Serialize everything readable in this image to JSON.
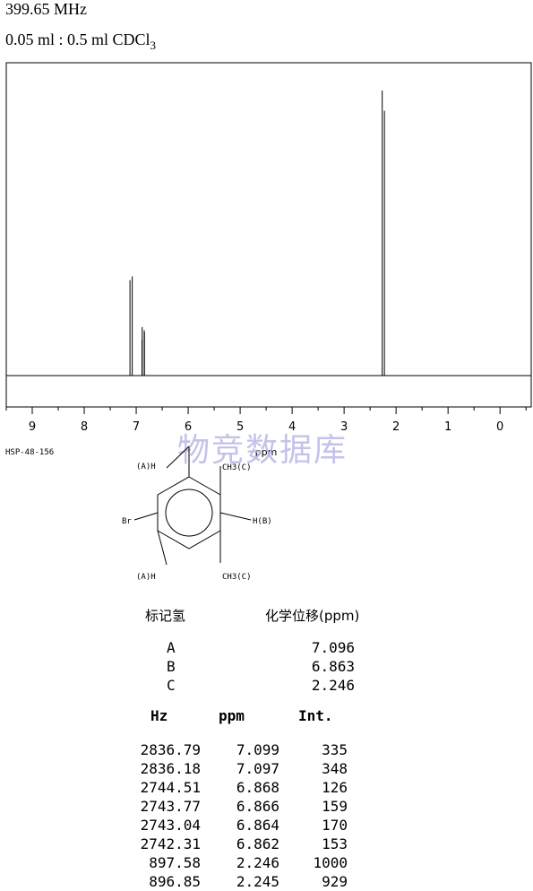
{
  "header": {
    "frequency": "399.65 MHz",
    "solvent_main": "0.05 ml : 0.5 ml CDCl",
    "solvent_sub": "3"
  },
  "watermark": "物竞数据库",
  "sample_id": "HSP-48-156",
  "structure": {
    "labels": {
      "ha_top": "(A)H",
      "ch3_top": "CH3(C)",
      "br": "Br",
      "hb": "H(B)",
      "ha_bottom": "(A)H",
      "ch3_bottom": "CH3(C)"
    }
  },
  "chart_data": {
    "type": "line",
    "title": "",
    "xlabel": "ppm",
    "ylabel": "",
    "xlim": [
      9.5,
      -0.6
    ],
    "x_reversed": true,
    "xticks": [
      9,
      8,
      7,
      6,
      5,
      4,
      3,
      2,
      1,
      0
    ],
    "xtick_labels": [
      "9",
      "8",
      "7",
      "6",
      "5",
      "4",
      "3",
      "2",
      "1",
      "0"
    ],
    "peaks": [
      {
        "ppm": 7.099,
        "intensity": 335
      },
      {
        "ppm": 7.097,
        "intensity": 348
      },
      {
        "ppm": 6.868,
        "intensity": 126
      },
      {
        "ppm": 6.866,
        "intensity": 159
      },
      {
        "ppm": 6.864,
        "intensity": 170
      },
      {
        "ppm": 6.862,
        "intensity": 153
      },
      {
        "ppm": 2.246,
        "intensity": 1000
      },
      {
        "ppm": 2.245,
        "intensity": 929
      }
    ],
    "grid": false
  },
  "shift_table": {
    "headers": [
      "标记氢",
      "化学位移(ppm)"
    ],
    "rows": [
      {
        "label": "A",
        "shift": "7.096"
      },
      {
        "label": "B",
        "shift": "6.863"
      },
      {
        "label": "C",
        "shift": "2.246"
      }
    ]
  },
  "peak_table": {
    "headers": [
      "Hz",
      "ppm",
      "Int."
    ],
    "rows": [
      {
        "hz": "2836.79",
        "ppm": "7.099",
        "int": "335"
      },
      {
        "hz": "2836.18",
        "ppm": "7.097",
        "int": "348"
      },
      {
        "hz": "2744.51",
        "ppm": "6.868",
        "int": "126"
      },
      {
        "hz": "2743.77",
        "ppm": "6.866",
        "int": "159"
      },
      {
        "hz": "2743.04",
        "ppm": "6.864",
        "int": "170"
      },
      {
        "hz": "2742.31",
        "ppm": "6.862",
        "int": "153"
      },
      {
        "hz": "897.58",
        "ppm": "2.246",
        "int": "1000"
      },
      {
        "hz": "896.85",
        "ppm": "2.245",
        "int": "929"
      }
    ]
  }
}
